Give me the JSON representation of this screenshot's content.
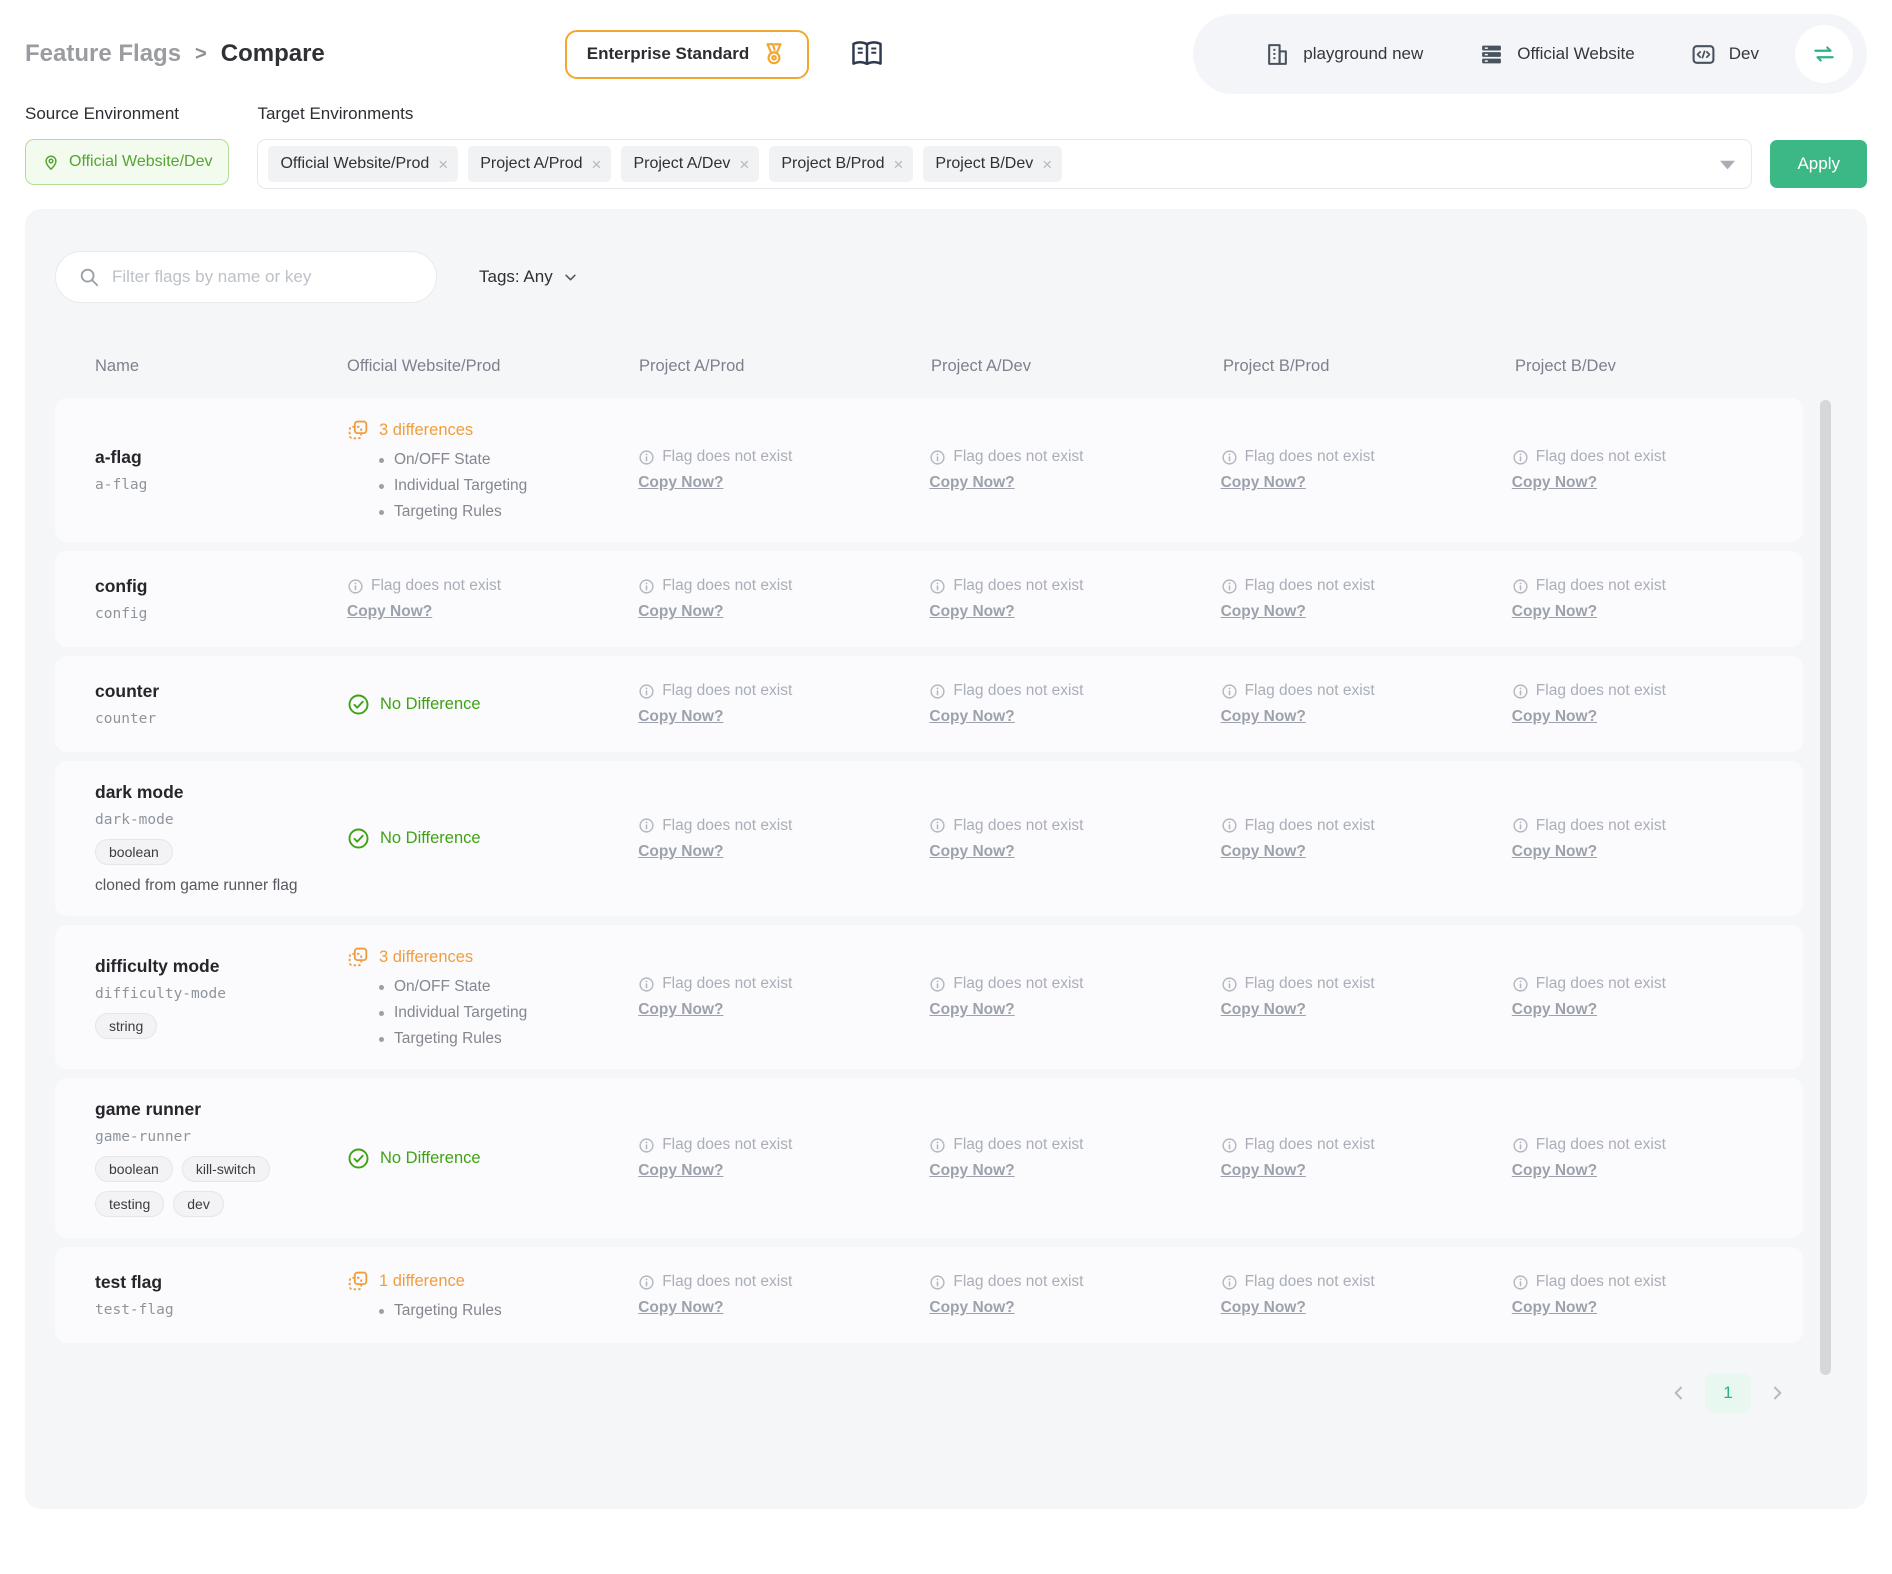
{
  "breadcrumb": {
    "parent": "Feature Flags",
    "separator": ">",
    "current": "Compare"
  },
  "plan_badge": {
    "label": "Enterprise Standard"
  },
  "topnav": {
    "organization": "playground new",
    "project": "Official Website",
    "environment": "Dev"
  },
  "env_bar": {
    "source_label": "Source Environment",
    "target_label": "Target Environments",
    "source_value": "Official Website/Dev",
    "targets": [
      "Official Website/Prod",
      "Project A/Prod",
      "Project A/Dev",
      "Project B/Prod",
      "Project B/Dev"
    ],
    "apply_label": "Apply"
  },
  "filters": {
    "search_placeholder": "Filter flags by name or key",
    "search_value": "",
    "tags_filter": "Tags: Any"
  },
  "table": {
    "columns": [
      "Name",
      "Official Website/Prod",
      "Project A/Prod",
      "Project A/Dev",
      "Project B/Prod",
      "Project B/Dev"
    ],
    "missing_label": "Flag does not exist",
    "missing_action": "Copy Now?",
    "no_difference_label": "No Difference",
    "rows": [
      {
        "name": "a-flag",
        "key": "a-flag",
        "tags": [],
        "description": "",
        "cells": [
          {
            "status": "differences",
            "label": "3 differences",
            "items": [
              "On/OFF State",
              "Individual Targeting",
              "Targeting Rules"
            ]
          },
          {
            "status": "missing",
            "label": "Flag does not exist",
            "action": "Copy Now?"
          },
          {
            "status": "missing",
            "label": "Flag does not exist",
            "action": "Copy Now?"
          },
          {
            "status": "missing",
            "label": "Flag does not exist",
            "action": "Copy Now?"
          },
          {
            "status": "missing",
            "label": "Flag does not exist",
            "action": "Copy Now?"
          }
        ]
      },
      {
        "name": "config",
        "key": "config",
        "tags": [],
        "description": "",
        "cells": [
          {
            "status": "missing",
            "label": "Flag does not exist",
            "action": "Copy Now?"
          },
          {
            "status": "missing",
            "label": "Flag does not exist",
            "action": "Copy Now?"
          },
          {
            "status": "missing",
            "label": "Flag does not exist",
            "action": "Copy Now?"
          },
          {
            "status": "missing",
            "label": "Flag does not exist",
            "action": "Copy Now?"
          },
          {
            "status": "missing",
            "label": "Flag does not exist",
            "action": "Copy Now?"
          }
        ]
      },
      {
        "name": "counter",
        "key": "counter",
        "tags": [],
        "description": "",
        "cells": [
          {
            "status": "same",
            "label": "No Difference"
          },
          {
            "status": "missing",
            "label": "Flag does not exist",
            "action": "Copy Now?"
          },
          {
            "status": "missing",
            "label": "Flag does not exist",
            "action": "Copy Now?"
          },
          {
            "status": "missing",
            "label": "Flag does not exist",
            "action": "Copy Now?"
          },
          {
            "status": "missing",
            "label": "Flag does not exist",
            "action": "Copy Now?"
          }
        ]
      },
      {
        "name": "dark mode",
        "key": "dark-mode",
        "tags": [
          "boolean"
        ],
        "description": "cloned from game runner flag",
        "cells": [
          {
            "status": "same",
            "label": "No Difference"
          },
          {
            "status": "missing",
            "label": "Flag does not exist",
            "action": "Copy Now?"
          },
          {
            "status": "missing",
            "label": "Flag does not exist",
            "action": "Copy Now?"
          },
          {
            "status": "missing",
            "label": "Flag does not exist",
            "action": "Copy Now?"
          },
          {
            "status": "missing",
            "label": "Flag does not exist",
            "action": "Copy Now?"
          }
        ]
      },
      {
        "name": "difficulty mode",
        "key": "difficulty-mode",
        "tags": [
          "string"
        ],
        "description": "",
        "cells": [
          {
            "status": "differences",
            "label": "3 differences",
            "items": [
              "On/OFF State",
              "Individual Targeting",
              "Targeting Rules"
            ]
          },
          {
            "status": "missing",
            "label": "Flag does not exist",
            "action": "Copy Now?"
          },
          {
            "status": "missing",
            "label": "Flag does not exist",
            "action": "Copy Now?"
          },
          {
            "status": "missing",
            "label": "Flag does not exist",
            "action": "Copy Now?"
          },
          {
            "status": "missing",
            "label": "Flag does not exist",
            "action": "Copy Now?"
          }
        ]
      },
      {
        "name": "game runner",
        "key": "game-runner",
        "tags": [
          "boolean",
          "kill-switch",
          "testing",
          "dev"
        ],
        "description": "",
        "cells": [
          {
            "status": "same",
            "label": "No Difference"
          },
          {
            "status": "missing",
            "label": "Flag does not exist",
            "action": "Copy Now?"
          },
          {
            "status": "missing",
            "label": "Flag does not exist",
            "action": "Copy Now?"
          },
          {
            "status": "missing",
            "label": "Flag does not exist",
            "action": "Copy Now?"
          },
          {
            "status": "missing",
            "label": "Flag does not exist",
            "action": "Copy Now?"
          }
        ]
      },
      {
        "name": "test flag",
        "key": "test-flag",
        "tags": [],
        "description": "",
        "cells": [
          {
            "status": "differences",
            "label": "1 difference",
            "items": [
              "Targeting Rules"
            ]
          },
          {
            "status": "missing",
            "label": "Flag does not exist",
            "action": "Copy Now?"
          },
          {
            "status": "missing",
            "label": "Flag does not exist",
            "action": "Copy Now?"
          },
          {
            "status": "missing",
            "label": "Flag does not exist",
            "action": "Copy Now?"
          },
          {
            "status": "missing",
            "label": "Flag does not exist",
            "action": "Copy Now?"
          }
        ]
      }
    ]
  },
  "pagination": {
    "current_page": "1"
  },
  "icons": {
    "medal": "badge glyph",
    "book": "docs glyph",
    "building": "org glyph",
    "server-stack": "project glyph",
    "code": "env glyph",
    "swap": "⇌",
    "location-pin": "◎",
    "close": "×",
    "caret-down": "▼",
    "chevron-down": "∨",
    "search": "⌕",
    "info-circle": "ⓘ",
    "diff": "compare glyph",
    "check-circle": "✓",
    "chevron-left": "‹",
    "chevron-right": "›"
  },
  "colors": {
    "apply_green": "#3bb883",
    "success_green": "#3ea314",
    "diff_orange": "#f09d3e",
    "badge_amber": "#f3a72e",
    "source_env_green": "#55a434",
    "panel_bg": "#f5f6f8",
    "pagination_green": "#2cb57d"
  }
}
